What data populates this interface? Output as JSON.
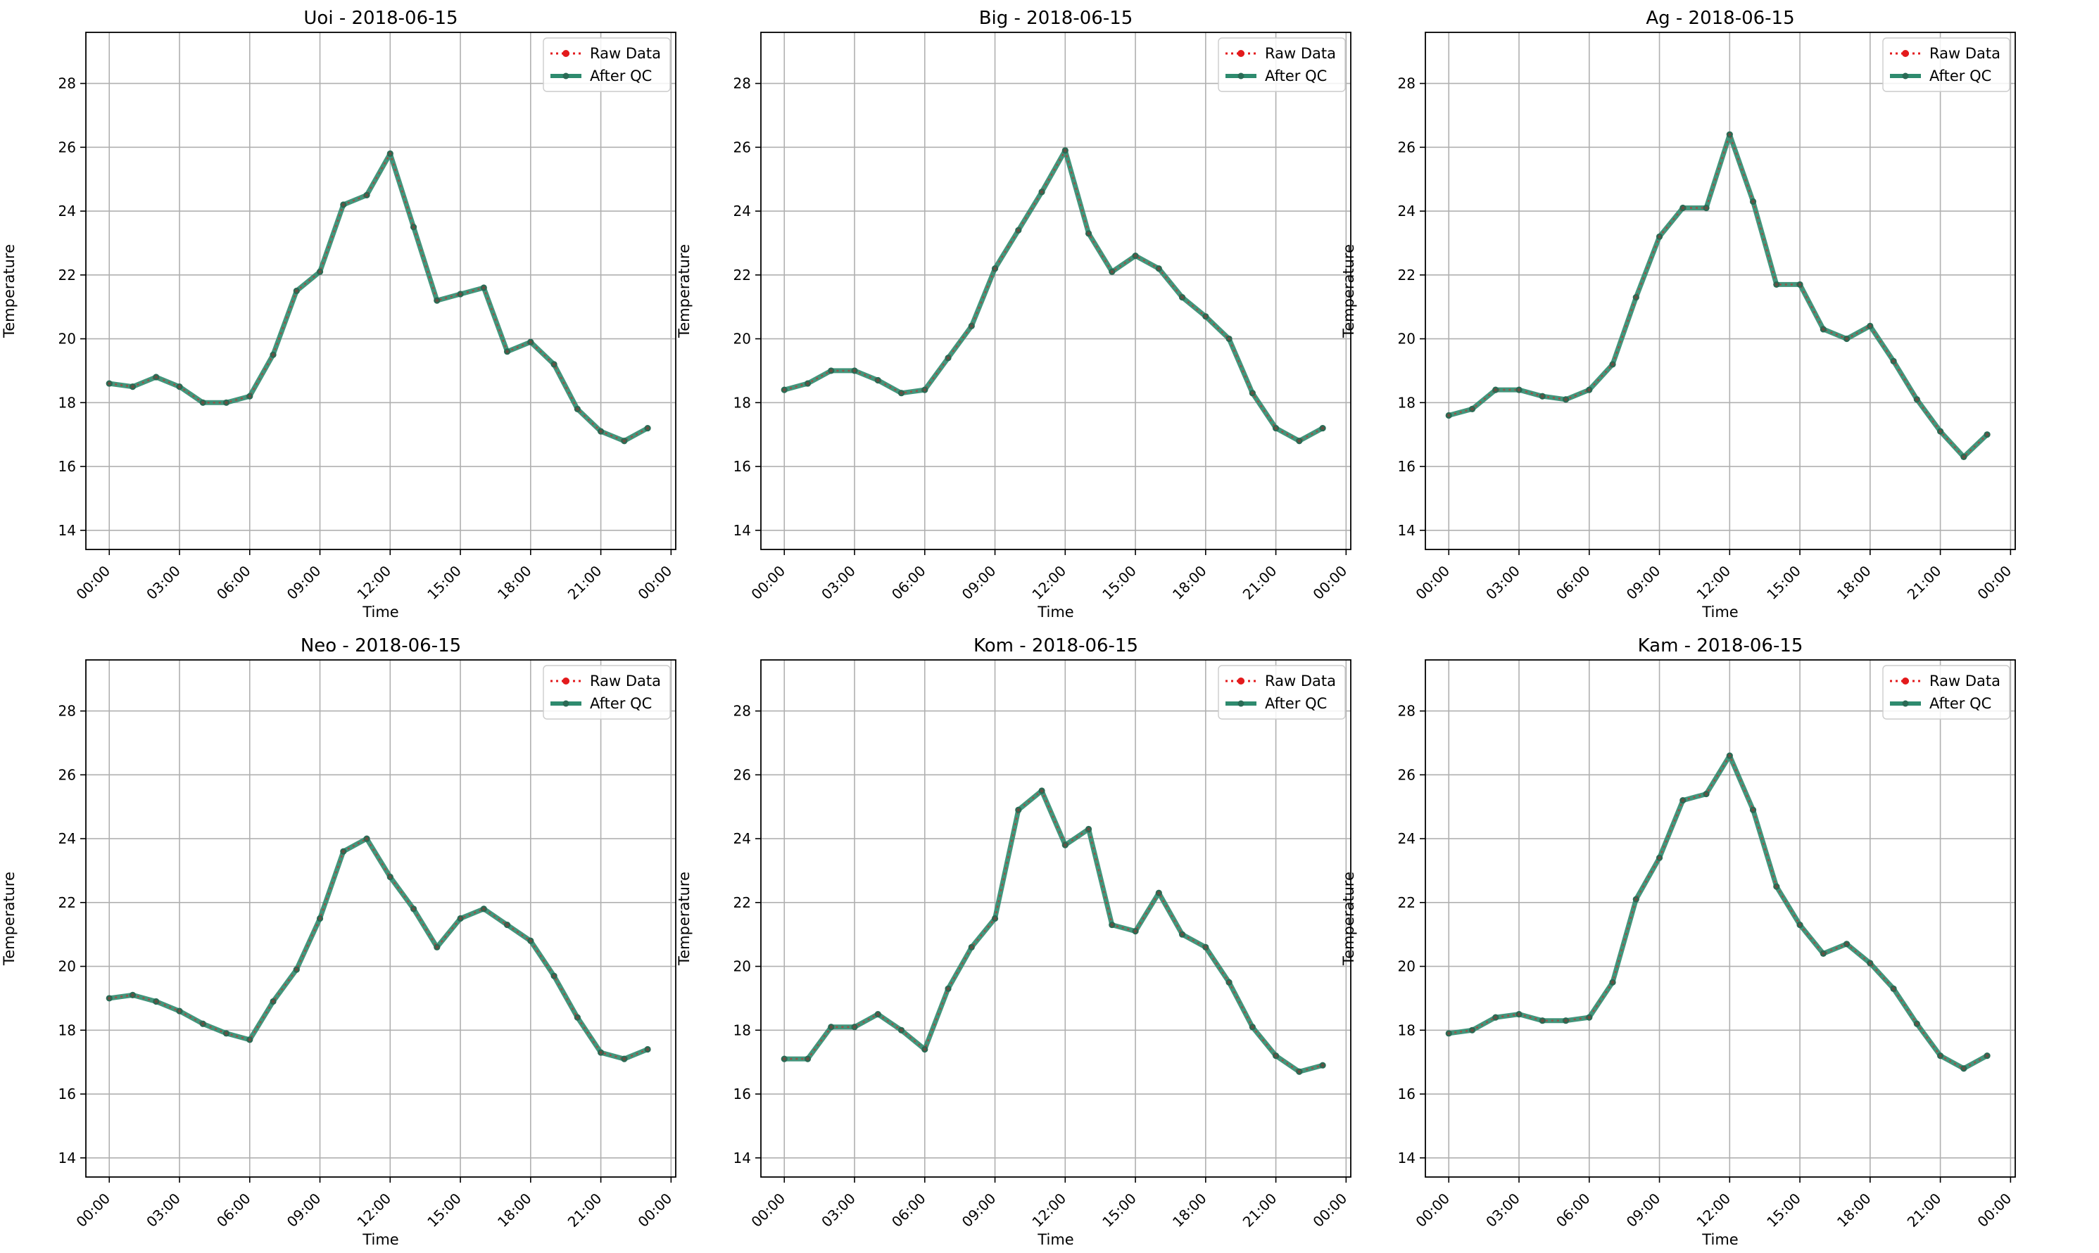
{
  "figure": {
    "colors": {
      "raw": "#e31a1c",
      "qc": "#2e8b6e",
      "qc_marker": "#2a6b55",
      "grid": "#b0b0b0",
      "axes": "#000000"
    }
  },
  "chart_data": [
    {
      "type": "line",
      "title": "Uoi - 2018-06-15",
      "xlabel": "Time",
      "ylabel": "Temperature",
      "ylim": [
        13.4,
        29.6
      ],
      "xlim_hours": [
        -1.0,
        24.2
      ],
      "yticks": [
        14,
        16,
        18,
        20,
        22,
        24,
        26,
        28
      ],
      "xticks": [
        "00:00",
        "03:00",
        "06:00",
        "09:00",
        "12:00",
        "15:00",
        "18:00",
        "21:00",
        "00:00"
      ],
      "grid": true,
      "legend": {
        "placement": "top-right",
        "entries": [
          "Raw Data",
          "After QC"
        ]
      },
      "x": [
        "00:00",
        "01:00",
        "02:00",
        "03:00",
        "04:00",
        "05:00",
        "06:00",
        "07:00",
        "08:00",
        "09:00",
        "10:00",
        "11:00",
        "12:00",
        "13:00",
        "14:00",
        "15:00",
        "16:00",
        "17:00",
        "18:00",
        "19:00",
        "20:00",
        "21:00",
        "22:00",
        "23:00"
      ],
      "series": [
        {
          "name": "Raw Data",
          "values": [
            18.6,
            18.5,
            18.8,
            18.5,
            18.0,
            18.0,
            18.2,
            19.5,
            21.5,
            22.1,
            24.2,
            24.5,
            25.8,
            23.5,
            21.2,
            21.4,
            21.6,
            19.6,
            19.9,
            19.2,
            17.8,
            17.1,
            16.8,
            17.2
          ]
        },
        {
          "name": "After QC",
          "values": [
            18.6,
            18.5,
            18.8,
            18.5,
            18.0,
            18.0,
            18.2,
            19.5,
            21.5,
            22.1,
            24.2,
            24.5,
            25.8,
            23.5,
            21.2,
            21.4,
            21.6,
            19.6,
            19.9,
            19.2,
            17.8,
            17.1,
            16.8,
            17.2
          ]
        }
      ]
    },
    {
      "type": "line",
      "title": "Big - 2018-06-15",
      "xlabel": "Time",
      "ylabel": "Temperature",
      "ylim": [
        13.4,
        29.6
      ],
      "xlim_hours": [
        -1.0,
        24.2
      ],
      "yticks": [
        14,
        16,
        18,
        20,
        22,
        24,
        26,
        28
      ],
      "xticks": [
        "00:00",
        "03:00",
        "06:00",
        "09:00",
        "12:00",
        "15:00",
        "18:00",
        "21:00",
        "00:00"
      ],
      "grid": true,
      "legend": {
        "placement": "top-right",
        "entries": [
          "Raw Data",
          "After QC"
        ]
      },
      "x": [
        "00:00",
        "01:00",
        "02:00",
        "03:00",
        "04:00",
        "05:00",
        "06:00",
        "07:00",
        "08:00",
        "09:00",
        "10:00",
        "11:00",
        "12:00",
        "13:00",
        "14:00",
        "15:00",
        "16:00",
        "17:00",
        "18:00",
        "19:00",
        "20:00",
        "21:00",
        "22:00",
        "23:00"
      ],
      "series": [
        {
          "name": "Raw Data",
          "values": [
            18.4,
            18.6,
            19.0,
            19.0,
            18.7,
            18.3,
            18.4,
            19.4,
            20.4,
            22.2,
            23.4,
            24.6,
            25.9,
            23.3,
            22.1,
            22.6,
            22.2,
            21.3,
            20.7,
            20.0,
            18.3,
            17.2,
            16.8,
            17.2
          ]
        },
        {
          "name": "After QC",
          "values": [
            18.4,
            18.6,
            19.0,
            19.0,
            18.7,
            18.3,
            18.4,
            19.4,
            20.4,
            22.2,
            23.4,
            24.6,
            25.9,
            23.3,
            22.1,
            22.6,
            22.2,
            21.3,
            20.7,
            20.0,
            18.3,
            17.2,
            16.8,
            17.2
          ]
        }
      ]
    },
    {
      "type": "line",
      "title": "Ag - 2018-06-15",
      "xlabel": "Time",
      "ylabel": "Temperature",
      "ylim": [
        13.4,
        29.6
      ],
      "xlim_hours": [
        -1.0,
        24.2
      ],
      "yticks": [
        14,
        16,
        18,
        20,
        22,
        24,
        26,
        28
      ],
      "xticks": [
        "00:00",
        "03:00",
        "06:00",
        "09:00",
        "12:00",
        "15:00",
        "18:00",
        "21:00",
        "00:00"
      ],
      "grid": true,
      "legend": {
        "placement": "top-right",
        "entries": [
          "Raw Data",
          "After QC"
        ]
      },
      "x": [
        "00:00",
        "01:00",
        "02:00",
        "03:00",
        "04:00",
        "05:00",
        "06:00",
        "07:00",
        "08:00",
        "09:00",
        "10:00",
        "11:00",
        "12:00",
        "13:00",
        "14:00",
        "15:00",
        "16:00",
        "17:00",
        "18:00",
        "19:00",
        "20:00",
        "21:00",
        "22:00",
        "23:00"
      ],
      "series": [
        {
          "name": "Raw Data",
          "values": [
            17.6,
            17.8,
            18.4,
            18.4,
            18.2,
            18.1,
            18.4,
            19.2,
            21.3,
            23.2,
            24.1,
            24.1,
            26.4,
            24.3,
            21.7,
            21.7,
            20.3,
            20.0,
            20.4,
            19.3,
            18.1,
            17.1,
            16.3,
            17.0
          ]
        },
        {
          "name": "After QC",
          "values": [
            17.6,
            17.8,
            18.4,
            18.4,
            18.2,
            18.1,
            18.4,
            19.2,
            21.3,
            23.2,
            24.1,
            24.1,
            26.4,
            24.3,
            21.7,
            21.7,
            20.3,
            20.0,
            20.4,
            19.3,
            18.1,
            17.1,
            16.3,
            17.0
          ]
        }
      ]
    },
    {
      "type": "line",
      "title": "Neo - 2018-06-15",
      "xlabel": "Time",
      "ylabel": "Temperature",
      "ylim": [
        13.4,
        29.6
      ],
      "xlim_hours": [
        -1.0,
        24.2
      ],
      "yticks": [
        14,
        16,
        18,
        20,
        22,
        24,
        26,
        28
      ],
      "xticks": [
        "00:00",
        "03:00",
        "06:00",
        "09:00",
        "12:00",
        "15:00",
        "18:00",
        "21:00",
        "00:00"
      ],
      "grid": true,
      "legend": {
        "placement": "top-right",
        "entries": [
          "Raw Data",
          "After QC"
        ]
      },
      "x": [
        "00:00",
        "01:00",
        "02:00",
        "03:00",
        "04:00",
        "05:00",
        "06:00",
        "07:00",
        "08:00",
        "09:00",
        "10:00",
        "11:00",
        "12:00",
        "13:00",
        "14:00",
        "15:00",
        "16:00",
        "17:00",
        "18:00",
        "19:00",
        "20:00",
        "21:00",
        "22:00",
        "23:00"
      ],
      "series": [
        {
          "name": "Raw Data",
          "values": [
            19.0,
            19.1,
            18.9,
            18.6,
            18.2,
            17.9,
            17.7,
            18.9,
            19.9,
            21.5,
            23.6,
            24.0,
            22.8,
            21.8,
            20.6,
            21.5,
            21.8,
            21.3,
            20.8,
            19.7,
            18.4,
            17.3,
            17.1,
            17.4
          ]
        },
        {
          "name": "After QC",
          "values": [
            19.0,
            19.1,
            18.9,
            18.6,
            18.2,
            17.9,
            17.7,
            18.9,
            19.9,
            21.5,
            23.6,
            24.0,
            22.8,
            21.8,
            20.6,
            21.5,
            21.8,
            21.3,
            20.8,
            19.7,
            18.4,
            17.3,
            17.1,
            17.4
          ]
        }
      ]
    },
    {
      "type": "line",
      "title": "Kom - 2018-06-15",
      "xlabel": "Time",
      "ylabel": "Temperature",
      "ylim": [
        13.4,
        29.6
      ],
      "xlim_hours": [
        -1.0,
        24.2
      ],
      "yticks": [
        14,
        16,
        18,
        20,
        22,
        24,
        26,
        28
      ],
      "xticks": [
        "00:00",
        "03:00",
        "06:00",
        "09:00",
        "12:00",
        "15:00",
        "18:00",
        "21:00",
        "00:00"
      ],
      "grid": true,
      "legend": {
        "placement": "top-right",
        "entries": [
          "Raw Data",
          "After QC"
        ]
      },
      "x": [
        "00:00",
        "01:00",
        "02:00",
        "03:00",
        "04:00",
        "05:00",
        "06:00",
        "07:00",
        "08:00",
        "09:00",
        "10:00",
        "11:00",
        "12:00",
        "13:00",
        "14:00",
        "15:00",
        "16:00",
        "17:00",
        "18:00",
        "19:00",
        "20:00",
        "21:00",
        "22:00",
        "23:00"
      ],
      "series": [
        {
          "name": "Raw Data",
          "values": [
            17.1,
            17.1,
            18.1,
            18.1,
            18.5,
            18.0,
            17.4,
            19.3,
            20.6,
            21.5,
            24.9,
            25.5,
            23.8,
            24.3,
            21.3,
            21.1,
            22.3,
            21.0,
            20.6,
            19.5,
            18.1,
            17.2,
            16.7,
            16.9
          ]
        },
        {
          "name": "After QC",
          "values": [
            17.1,
            17.1,
            18.1,
            18.1,
            18.5,
            18.0,
            17.4,
            19.3,
            20.6,
            21.5,
            24.9,
            25.5,
            23.8,
            24.3,
            21.3,
            21.1,
            22.3,
            21.0,
            20.6,
            19.5,
            18.1,
            17.2,
            16.7,
            16.9
          ]
        }
      ]
    },
    {
      "type": "line",
      "title": "Kam - 2018-06-15",
      "xlabel": "Time",
      "ylabel": "Temperature",
      "ylim": [
        13.4,
        29.6
      ],
      "xlim_hours": [
        -1.0,
        24.2
      ],
      "yticks": [
        14,
        16,
        18,
        20,
        22,
        24,
        26,
        28
      ],
      "xticks": [
        "00:00",
        "03:00",
        "06:00",
        "09:00",
        "12:00",
        "15:00",
        "18:00",
        "21:00",
        "00:00"
      ],
      "grid": true,
      "legend": {
        "placement": "top-right",
        "entries": [
          "Raw Data",
          "After QC"
        ]
      },
      "x": [
        "00:00",
        "01:00",
        "02:00",
        "03:00",
        "04:00",
        "05:00",
        "06:00",
        "07:00",
        "08:00",
        "09:00",
        "10:00",
        "11:00",
        "12:00",
        "13:00",
        "14:00",
        "15:00",
        "16:00",
        "17:00",
        "18:00",
        "19:00",
        "20:00",
        "21:00",
        "22:00",
        "23:00"
      ],
      "series": [
        {
          "name": "Raw Data",
          "values": [
            17.9,
            18.0,
            18.4,
            18.5,
            18.3,
            18.3,
            18.4,
            19.5,
            22.1,
            23.4,
            25.2,
            25.4,
            26.6,
            24.9,
            22.5,
            21.3,
            20.4,
            20.7,
            20.1,
            19.3,
            18.2,
            17.2,
            16.8,
            17.2
          ]
        },
        {
          "name": "After QC",
          "values": [
            17.9,
            18.0,
            18.4,
            18.5,
            18.3,
            18.3,
            18.4,
            19.5,
            22.1,
            23.4,
            25.2,
            25.4,
            26.6,
            24.9,
            22.5,
            21.3,
            20.4,
            20.7,
            20.1,
            19.3,
            18.2,
            17.2,
            16.8,
            17.2
          ]
        }
      ]
    }
  ]
}
